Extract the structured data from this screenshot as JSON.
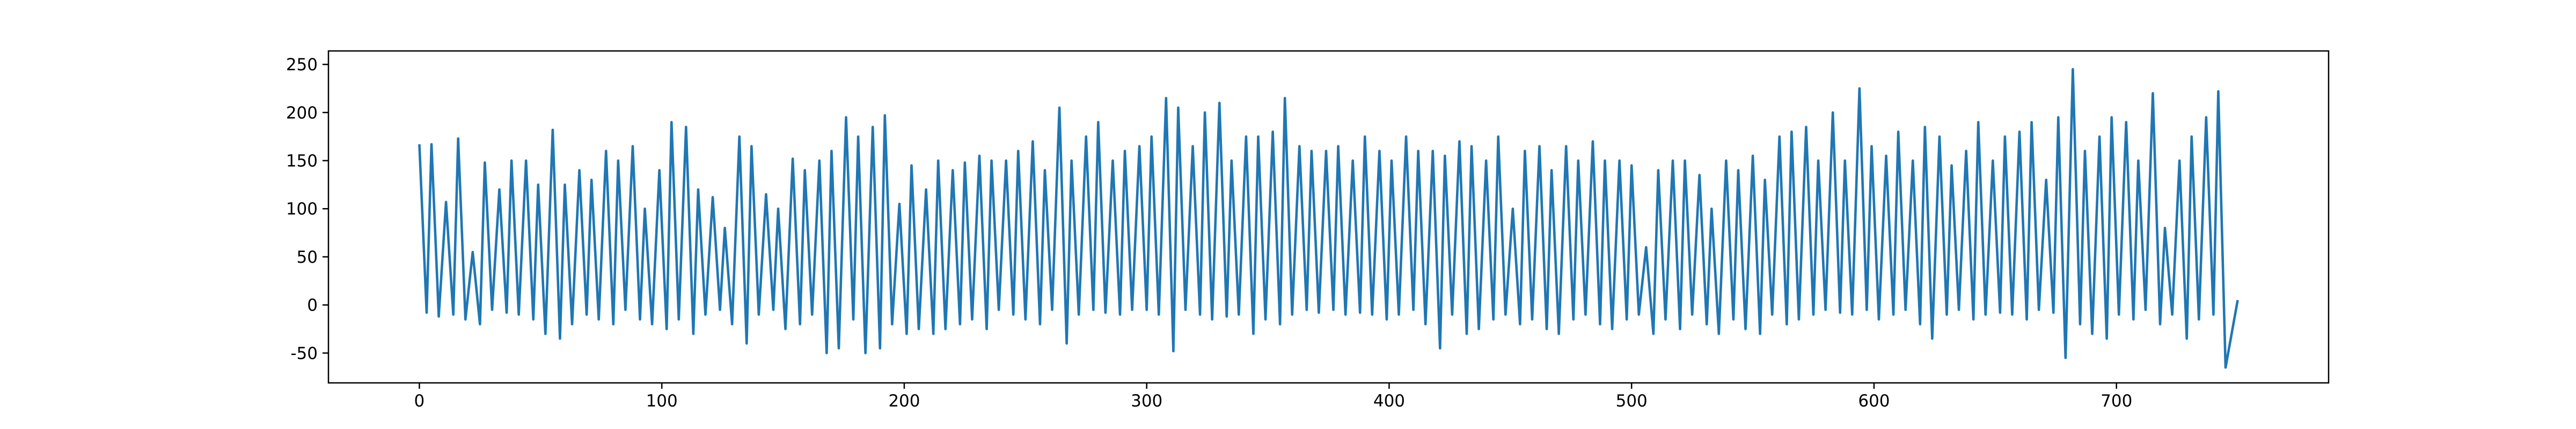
{
  "chart_data": {
    "type": "line",
    "color": "#1f77b4",
    "x": [
      0,
      3,
      5,
      8,
      11,
      14,
      16,
      19,
      22,
      25,
      27,
      30,
      33,
      36,
      38,
      41,
      44,
      47,
      49,
      52,
      55,
      58,
      60,
      63,
      66,
      69,
      71,
      74,
      77,
      80,
      82,
      85,
      88,
      91,
      93,
      96,
      99,
      102,
      104,
      107,
      110,
      113,
      115,
      118,
      121,
      124,
      126,
      129,
      132,
      135,
      137,
      140,
      143,
      146,
      148,
      151,
      154,
      157,
      159,
      162,
      165,
      168,
      170,
      173,
      176,
      179,
      181,
      184,
      187,
      190,
      192,
      195,
      198,
      201,
      203,
      206,
      209,
      212,
      214,
      217,
      220,
      223,
      225,
      228,
      231,
      234,
      236,
      239,
      242,
      245,
      247,
      250,
      253,
      256,
      258,
      261,
      264,
      267,
      269,
      272,
      275,
      278,
      280,
      283,
      286,
      289,
      291,
      294,
      297,
      300,
      302,
      305,
      308,
      311,
      313,
      316,
      319,
      322,
      324,
      327,
      330,
      333,
      335,
      338,
      341,
      344,
      346,
      349,
      352,
      355,
      357,
      360,
      363,
      366,
      368,
      371,
      374,
      377,
      379,
      382,
      385,
      388,
      390,
      393,
      396,
      399,
      401,
      404,
      407,
      410,
      412,
      415,
      418,
      421,
      423,
      426,
      429,
      432,
      434,
      437,
      440,
      443,
      445,
      448,
      451,
      454,
      456,
      459,
      462,
      465,
      467,
      470,
      473,
      476,
      478,
      481,
      484,
      487,
      489,
      492,
      495,
      498,
      500,
      503,
      506,
      509,
      511,
      514,
      517,
      520,
      522,
      525,
      528,
      531,
      533,
      536,
      539,
      542,
      544,
      547,
      550,
      553,
      555,
      558,
      561,
      564,
      566,
      569,
      572,
      575,
      577,
      580,
      583,
      586,
      588,
      591,
      594,
      597,
      599,
      602,
      605,
      608,
      610,
      613,
      616,
      619,
      621,
      624,
      627,
      630,
      632,
      635,
      638,
      641,
      643,
      646,
      649,
      652,
      654,
      657,
      660,
      663,
      665,
      668,
      671,
      674,
      676,
      679,
      682,
      685,
      687,
      690,
      693,
      696,
      698,
      701,
      704,
      707,
      709,
      712,
      715,
      718,
      720,
      723,
      726,
      729,
      731,
      734,
      737,
      740,
      742,
      745,
      750
    ],
    "values": [
      167,
      -8,
      167,
      -12,
      107,
      -10,
      173,
      -15,
      55,
      -20,
      148,
      -5,
      120,
      -8,
      150,
      -10,
      150,
      -15,
      125,
      -30,
      182,
      -35,
      125,
      -20,
      140,
      -10,
      130,
      -15,
      160,
      -20,
      150,
      -5,
      165,
      -15,
      100,
      -20,
      140,
      -25,
      190,
      -15,
      185,
      -30,
      120,
      -10,
      112,
      -5,
      80,
      -20,
      175,
      -40,
      165,
      -10,
      115,
      -5,
      100,
      -25,
      152,
      -20,
      140,
      -10,
      150,
      -50,
      160,
      -45,
      195,
      -15,
      175,
      -50,
      185,
      -45,
      197,
      -20,
      105,
      -30,
      145,
      -25,
      120,
      -30,
      150,
      -25,
      140,
      -20,
      148,
      -15,
      155,
      -25,
      150,
      -5,
      150,
      -10,
      160,
      -15,
      170,
      -20,
      140,
      -5,
      205,
      -40,
      150,
      -10,
      175,
      -5,
      190,
      -8,
      150,
      -10,
      160,
      -5,
      165,
      -5,
      175,
      -10,
      215,
      -48,
      205,
      -5,
      165,
      -10,
      200,
      -15,
      210,
      -12,
      150,
      -10,
      175,
      -30,
      175,
      -15,
      180,
      -20,
      215,
      -10,
      165,
      -5,
      160,
      -8,
      160,
      -5,
      165,
      -10,
      150,
      -8,
      175,
      -10,
      160,
      -15,
      150,
      -10,
      175,
      -5,
      160,
      -20,
      160,
      -45,
      155,
      -10,
      170,
      -30,
      165,
      -25,
      150,
      -15,
      175,
      -10,
      100,
      -20,
      160,
      -15,
      165,
      -25,
      140,
      -30,
      165,
      -15,
      150,
      -10,
      170,
      -20,
      150,
      -25,
      150,
      -15,
      145,
      -10,
      60,
      -30,
      140,
      -15,
      150,
      -25,
      150,
      -10,
      135,
      -20,
      100,
      -30,
      150,
      -15,
      140,
      -25,
      155,
      -30,
      130,
      -10,
      175,
      -20,
      180,
      -15,
      185,
      -10,
      150,
      -5,
      200,
      -8,
      150,
      -10,
      225,
      -5,
      165,
      -15,
      155,
      -10,
      180,
      -5,
      150,
      -20,
      185,
      -35,
      175,
      -10,
      145,
      -5,
      160,
      -15,
      190,
      -10,
      150,
      -8,
      175,
      -10,
      180,
      -15,
      190,
      -5,
      130,
      -8,
      195,
      -55,
      245,
      -20,
      160,
      -30,
      175,
      -35,
      195,
      -10,
      190,
      -15,
      150,
      -5,
      220,
      -20,
      80,
      -10,
      150,
      -35,
      175,
      -15,
      195,
      -10,
      222,
      -65,
      5
    ],
    "xlim": [
      -37.5,
      787.5
    ],
    "xticks": [
      0,
      100,
      200,
      300,
      400,
      500,
      600,
      700
    ],
    "ylim": [
      -81,
      264
    ],
    "yticks": [
      -50,
      0,
      50,
      100,
      150,
      200,
      250
    ]
  }
}
